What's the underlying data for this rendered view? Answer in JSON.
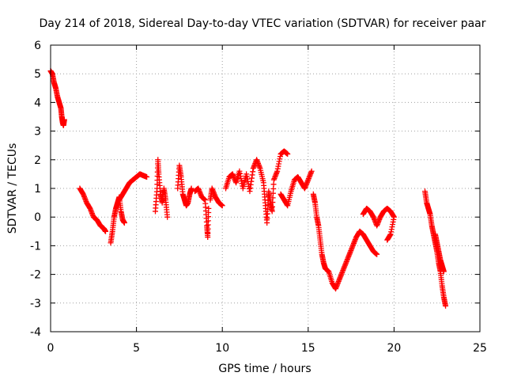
{
  "chart_data": {
    "type": "scatter",
    "title": "Day 214 of 2018, Sidereal Day-to-day VTEC variation (SDTVAR) for receiver paar",
    "xlabel": "GPS time / hours",
    "ylabel": "SDTVAR / TECUs",
    "xlim": [
      0,
      25
    ],
    "ylim": [
      -4,
      6
    ],
    "xticks": [
      0,
      5,
      10,
      15,
      20,
      25
    ],
    "yticks": [
      -4,
      -3,
      -2,
      -1,
      0,
      1,
      2,
      3,
      4,
      5,
      6
    ],
    "grid": true,
    "marker": "plus",
    "color": "#ff0000",
    "series": [
      {
        "name": "SDTVAR",
        "segments": [
          [
            [
              0.0,
              5.1
            ],
            [
              0.1,
              5.0
            ],
            [
              0.2,
              4.7
            ],
            [
              0.3,
              4.5
            ],
            [
              0.4,
              4.2
            ],
            [
              0.5,
              4.0
            ],
            [
              0.6,
              3.8
            ],
            [
              0.65,
              3.5
            ],
            [
              0.7,
              3.3
            ],
            [
              0.75,
              3.2
            ],
            [
              0.8,
              3.4
            ]
          ],
          [
            [
              1.7,
              1.0
            ],
            [
              1.9,
              0.8
            ],
            [
              2.1,
              0.5
            ],
            [
              2.3,
              0.3
            ],
            [
              2.5,
              0.0
            ],
            [
              2.7,
              -0.1
            ],
            [
              2.9,
              -0.3
            ],
            [
              3.1,
              -0.4
            ],
            [
              3.2,
              -0.5
            ]
          ],
          [
            [
              3.5,
              -0.9
            ],
            [
              3.6,
              -0.5
            ],
            [
              3.7,
              0.0
            ],
            [
              3.8,
              0.3
            ],
            [
              3.9,
              0.5
            ],
            [
              4.0,
              0.7
            ],
            [
              4.1,
              0.2
            ],
            [
              4.2,
              -0.1
            ],
            [
              4.3,
              -0.2
            ]
          ],
          [
            [
              4.0,
              0.6
            ],
            [
              4.2,
              0.8
            ],
            [
              4.4,
              1.0
            ],
            [
              4.6,
              1.2
            ],
            [
              4.8,
              1.3
            ],
            [
              5.0,
              1.4
            ],
            [
              5.2,
              1.5
            ],
            [
              5.4,
              1.45
            ],
            [
              5.6,
              1.4
            ]
          ],
          [
            [
              6.1,
              0.2
            ],
            [
              6.2,
              1.0
            ],
            [
              6.25,
              2.0
            ],
            [
              6.3,
              1.5
            ],
            [
              6.4,
              0.8
            ],
            [
              6.5,
              0.5
            ],
            [
              6.6,
              1.0
            ],
            [
              6.7,
              0.6
            ],
            [
              6.8,
              0.0
            ]
          ],
          [
            [
              7.4,
              1.0
            ],
            [
              7.5,
              1.8
            ],
            [
              7.6,
              1.4
            ],
            [
              7.7,
              0.8
            ],
            [
              7.8,
              0.6
            ],
            [
              7.9,
              0.4
            ],
            [
              8.0,
              0.5
            ],
            [
              8.1,
              0.8
            ],
            [
              8.2,
              1.0
            ]
          ],
          [
            [
              8.4,
              0.9
            ],
            [
              8.6,
              1.0
            ],
            [
              8.8,
              0.7
            ],
            [
              9.0,
              0.6
            ],
            [
              9.1,
              -0.3
            ],
            [
              9.15,
              -0.7
            ],
            [
              9.2,
              0.3
            ]
          ],
          [
            [
              9.3,
              0.6
            ],
            [
              9.4,
              1.0
            ],
            [
              9.6,
              0.7
            ],
            [
              9.8,
              0.5
            ],
            [
              10.0,
              0.4
            ]
          ],
          [
            [
              10.2,
              1.0
            ],
            [
              10.4,
              1.4
            ],
            [
              10.6,
              1.5
            ],
            [
              10.8,
              1.2
            ],
            [
              11.0,
              1.6
            ],
            [
              11.2,
              1.0
            ],
            [
              11.4,
              1.5
            ],
            [
              11.6,
              0.9
            ],
            [
              11.8,
              1.7
            ],
            [
              12.0,
              2.0
            ],
            [
              12.2,
              1.7
            ],
            [
              12.4,
              1.2
            ],
            [
              12.5,
              0.5
            ],
            [
              12.6,
              -0.2
            ],
            [
              12.7,
              0.9
            ],
            [
              12.8,
              0.5
            ],
            [
              12.9,
              0.2
            ],
            [
              13.0,
              1.3
            ],
            [
              13.2,
              1.6
            ],
            [
              13.4,
              2.2
            ],
            [
              13.6,
              2.3
            ],
            [
              13.8,
              2.2
            ]
          ],
          [
            [
              13.4,
              0.8
            ],
            [
              13.6,
              0.6
            ],
            [
              13.8,
              0.4
            ],
            [
              14.0,
              0.9
            ],
            [
              14.2,
              1.3
            ],
            [
              14.4,
              1.4
            ],
            [
              14.6,
              1.2
            ],
            [
              14.8,
              1.0
            ],
            [
              15.0,
              1.3
            ],
            [
              15.2,
              1.6
            ]
          ],
          [
            [
              15.3,
              0.8
            ],
            [
              15.4,
              0.5
            ],
            [
              15.5,
              0.0
            ],
            [
              15.6,
              -0.3
            ],
            [
              15.7,
              -0.8
            ],
            [
              15.8,
              -1.3
            ],
            [
              15.9,
              -1.6
            ],
            [
              16.0,
              -1.8
            ],
            [
              16.2,
              -1.9
            ],
            [
              16.4,
              -2.3
            ],
            [
              16.6,
              -2.5
            ],
            [
              16.8,
              -2.2
            ],
            [
              17.0,
              -1.9
            ],
            [
              17.2,
              -1.6
            ],
            [
              17.4,
              -1.3
            ],
            [
              17.6,
              -1.0
            ],
            [
              17.8,
              -0.7
            ],
            [
              18.0,
              -0.5
            ],
            [
              18.2,
              -0.6
            ],
            [
              18.4,
              -0.8
            ],
            [
              18.6,
              -1.0
            ],
            [
              18.8,
              -1.2
            ],
            [
              19.0,
              -1.3
            ]
          ],
          [
            [
              18.2,
              0.1
            ],
            [
              18.4,
              0.3
            ],
            [
              18.6,
              0.2
            ],
            [
              18.8,
              0.0
            ],
            [
              19.0,
              -0.3
            ],
            [
              19.2,
              0.0
            ],
            [
              19.4,
              0.2
            ],
            [
              19.6,
              0.3
            ],
            [
              19.8,
              0.2
            ],
            [
              20.0,
              0.0
            ],
            [
              19.8,
              -0.6
            ],
            [
              19.6,
              -0.8
            ]
          ],
          [
            [
              21.8,
              0.9
            ],
            [
              21.9,
              0.5
            ],
            [
              22.0,
              0.3
            ],
            [
              22.1,
              0.1
            ],
            [
              22.2,
              -0.3
            ],
            [
              22.3,
              -0.6
            ],
            [
              22.4,
              -0.9
            ],
            [
              22.5,
              -1.2
            ],
            [
              22.6,
              -1.6
            ],
            [
              22.7,
              -1.9
            ],
            [
              22.8,
              -2.4
            ],
            [
              22.9,
              -2.8
            ],
            [
              23.0,
              -3.1
            ]
          ],
          [
            [
              22.4,
              -0.6
            ],
            [
              22.5,
              -0.9
            ],
            [
              22.6,
              -1.2
            ],
            [
              22.7,
              -1.5
            ],
            [
              22.8,
              -1.7
            ],
            [
              22.9,
              -1.9
            ]
          ]
        ]
      }
    ]
  }
}
